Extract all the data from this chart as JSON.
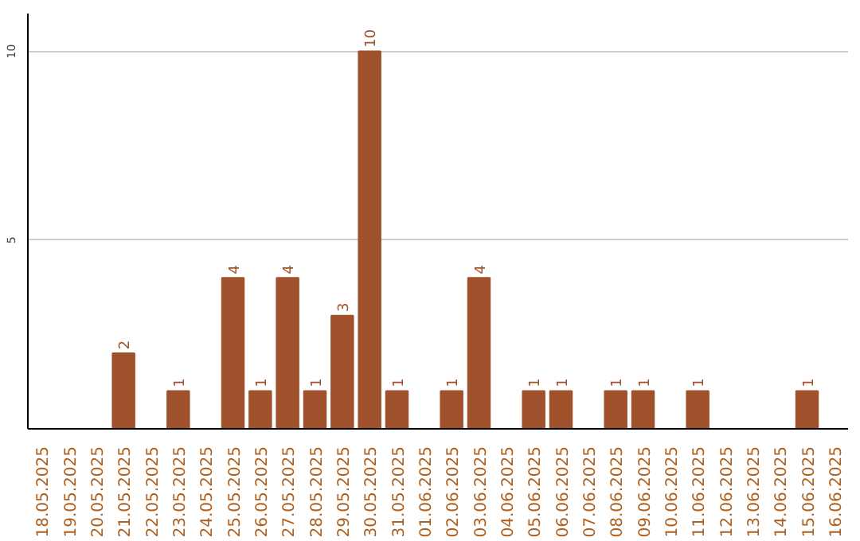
{
  "chart_data": {
    "type": "bar",
    "categories": [
      "18.05.2025",
      "19.05.2025",
      "20.05.2025",
      "21.05.2025",
      "22.05.2025",
      "23.05.2025",
      "24.05.2025",
      "25.05.2025",
      "26.05.2025",
      "27.05.2025",
      "28.05.2025",
      "29.05.2025",
      "30.05.2025",
      "31.05.2025",
      "01.06.2025",
      "02.06.2025",
      "03.06.2025",
      "04.06.2025",
      "05.06.2025",
      "06.06.2025",
      "07.06.2025",
      "08.06.2025",
      "09.06.2025",
      "10.06.2025",
      "11.06.2025",
      "12.06.2025",
      "13.06.2025",
      "14.06.2025",
      "15.06.2025",
      "16.06.2025"
    ],
    "values": [
      0,
      0,
      0,
      2,
      0,
      1,
      0,
      4,
      1,
      4,
      1,
      3,
      10,
      1,
      0,
      1,
      4,
      0,
      1,
      1,
      0,
      1,
      1,
      0,
      1,
      0,
      0,
      0,
      1,
      0
    ],
    "value_labels": [
      null,
      null,
      null,
      "2",
      null,
      "1",
      null,
      "4",
      "1",
      "4",
      "1",
      "3",
      "10",
      "1",
      null,
      "1",
      "4",
      null,
      "1",
      "1",
      null,
      "1",
      "1",
      null,
      "1",
      null,
      null,
      null,
      "1",
      null
    ],
    "color": "#a0522d",
    "ylim": [
      0,
      11
    ],
    "yticks": [
      5,
      10
    ],
    "grid": "y"
  }
}
